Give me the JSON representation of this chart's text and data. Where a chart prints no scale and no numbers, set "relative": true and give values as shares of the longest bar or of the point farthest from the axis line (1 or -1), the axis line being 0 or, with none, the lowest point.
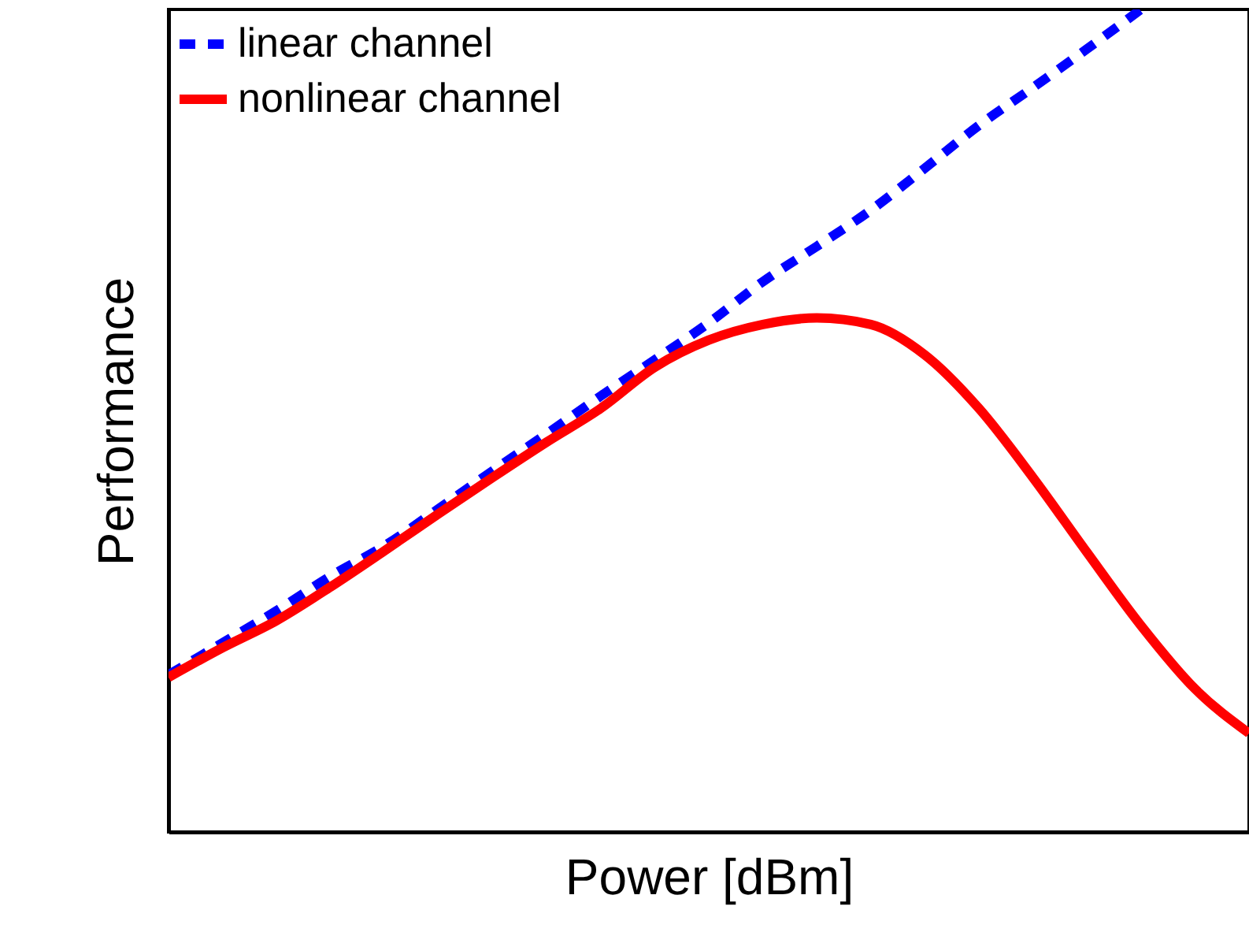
{
  "chart_data": {
    "type": "line",
    "relative": true,
    "xlabel": "Power [dBm]",
    "ylabel": "Performance",
    "categories": [
      null,
      null,
      null,
      null,
      null,
      null,
      null,
      null,
      null,
      null,
      null,
      null,
      null,
      null,
      null,
      null,
      null,
      null,
      null,
      null,
      null
    ],
    "series": [
      {
        "name": "linear channel",
        "color": "#0000ff",
        "line_style": "dashed",
        "values": [
          0.191,
          0.23,
          0.269,
          0.311,
          0.348,
          0.393,
          0.439,
          0.484,
          0.53,
          0.574,
          0.619,
          0.669,
          0.712,
          0.756,
          0.807,
          0.859,
          0.905,
          0.952,
          1.0,
          null,
          null
        ]
      },
      {
        "name": "nonlinear channel",
        "color": "#ff0000",
        "line_style": "solid",
        "values": [
          0.188,
          0.224,
          0.257,
          0.298,
          0.342,
          0.387,
          0.431,
          0.474,
          0.515,
          0.565,
          0.598,
          0.617,
          0.625,
          0.617,
          0.58,
          0.515,
          0.431,
          0.34,
          0.251,
          0.174,
          0.12
        ]
      }
    ],
    "legend": "top left",
    "grid": false,
    "marker": "none"
  }
}
